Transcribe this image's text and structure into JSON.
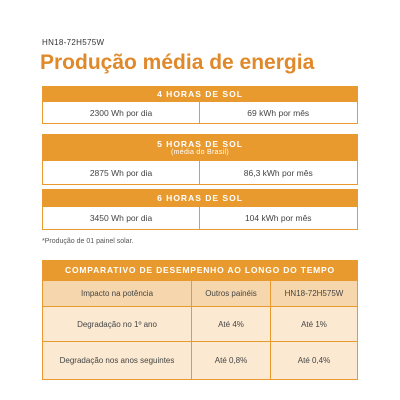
{
  "model": "HN18-72H575W",
  "title": "Produção média de energia",
  "blocks": [
    {
      "heading": "4 HORAS DE SOL",
      "cells": [
        "2300 Wh por dia",
        "69 kWh por mês"
      ]
    },
    {
      "heading": "5 HORAS DE SOL",
      "subheading": "(média do Brasil)",
      "cells": [
        "2875 Wh por dia",
        "86,3 kWh por mês"
      ]
    },
    {
      "heading": "6 HORAS DE SOL",
      "cells": [
        "3450 Wh por dia",
        "104 kWh por mês"
      ]
    }
  ],
  "footnote": "*Produção de 01 painel solar.",
  "table": {
    "title": "COMPARATIVO DE DESEMPENHO AO LONGO DO TEMPO",
    "columns": [
      "Impacto na potência",
      "Outros painéis",
      "HN18-72H575W"
    ],
    "rows": [
      [
        "Degradação no 1º ano",
        "Até 4%",
        "Até 1%"
      ],
      [
        "Degradação nos anos seguintes",
        "Até 0,8%",
        "Até 0,4%"
      ]
    ]
  }
}
